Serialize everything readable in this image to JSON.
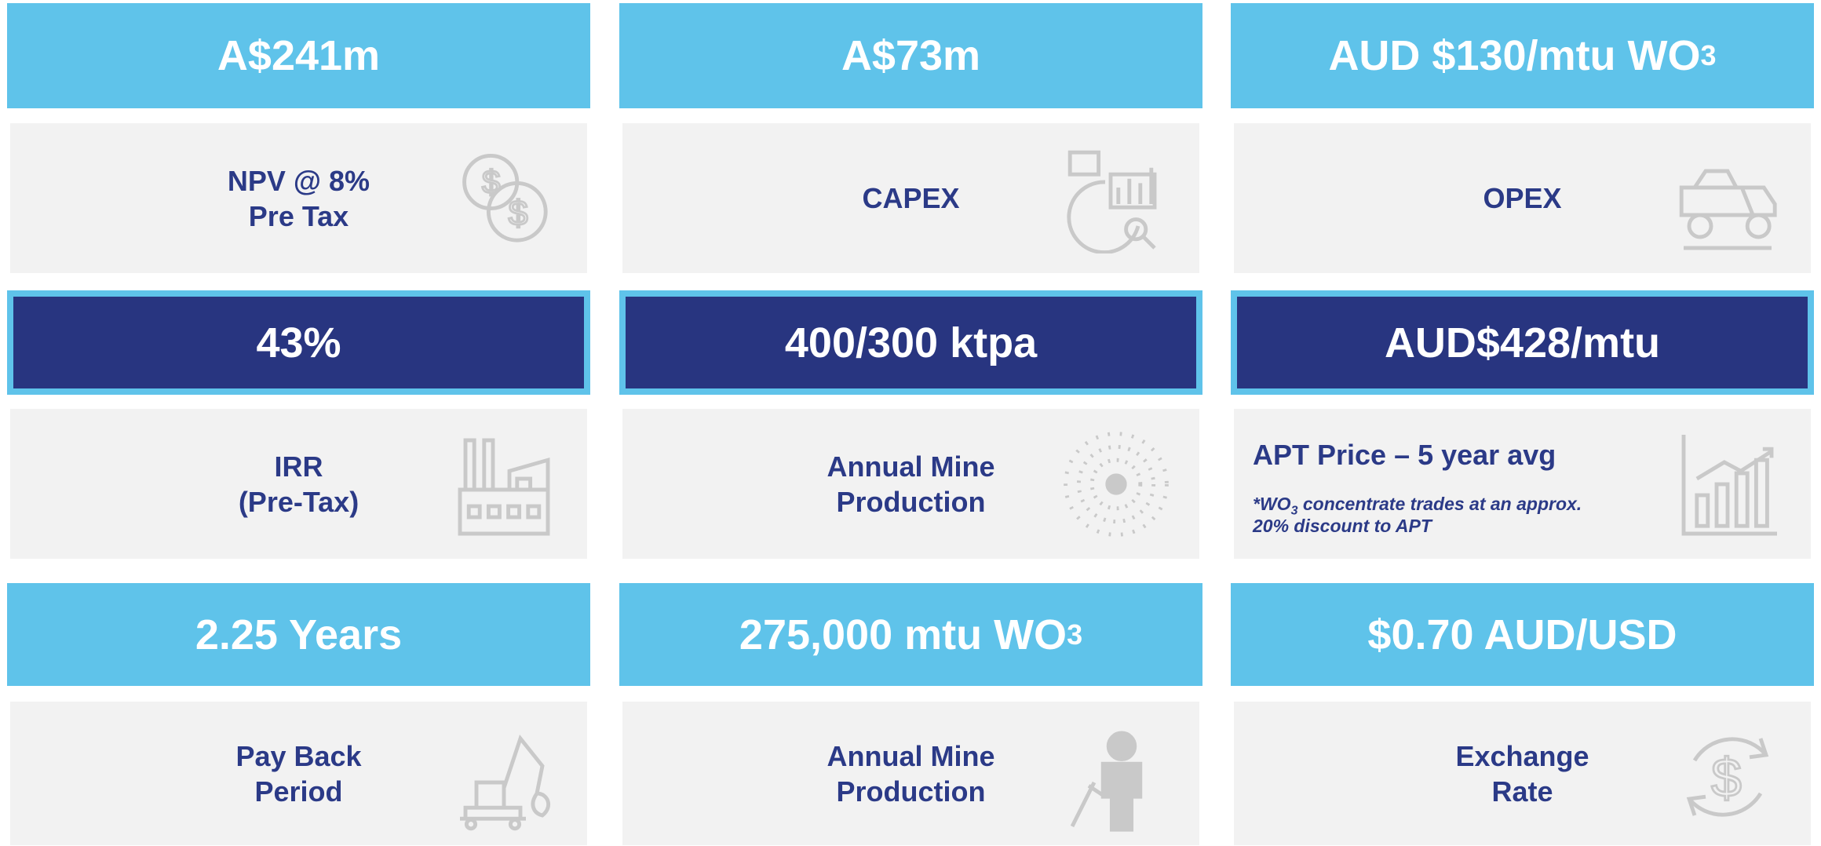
{
  "cards": [
    {
      "value": {
        "text": "A$241m"
      },
      "label": [
        "NPV @ 8%",
        "Pre Tax"
      ]
    },
    {
      "value": {
        "text": "A$73m"
      },
      "label": [
        "CAPEX"
      ]
    },
    {
      "value": {
        "text": "AUD $130/mtu WO",
        "sub": "3"
      },
      "label": [
        "OPEX"
      ]
    },
    {
      "value": {
        "text": "43%"
      },
      "label": [
        "IRR",
        "(Pre-Tax)"
      ]
    },
    {
      "value": {
        "text": "400/300 ktpa"
      },
      "label": [
        "Annual Mine",
        "Production"
      ]
    },
    {
      "value": {
        "text": "AUD$428/mtu"
      },
      "label": [
        "APT Price – 5 year avg"
      ],
      "note": {
        "text": "*WO",
        "sub": "3",
        "rest": " concentrate trades at an approx.",
        "line2": "20% discount to APT"
      }
    },
    {
      "value": {
        "text": "2.25 Years"
      },
      "label": [
        "Pay Back",
        "Period"
      ]
    },
    {
      "value": {
        "text": "275,000 mtu WO",
        "sub": "3"
      },
      "label": [
        "Annual Mine",
        "Production"
      ]
    },
    {
      "value": {
        "text": "$0.70 AUD/USD"
      },
      "label": [
        "Exchange",
        "Rate"
      ]
    }
  ]
}
